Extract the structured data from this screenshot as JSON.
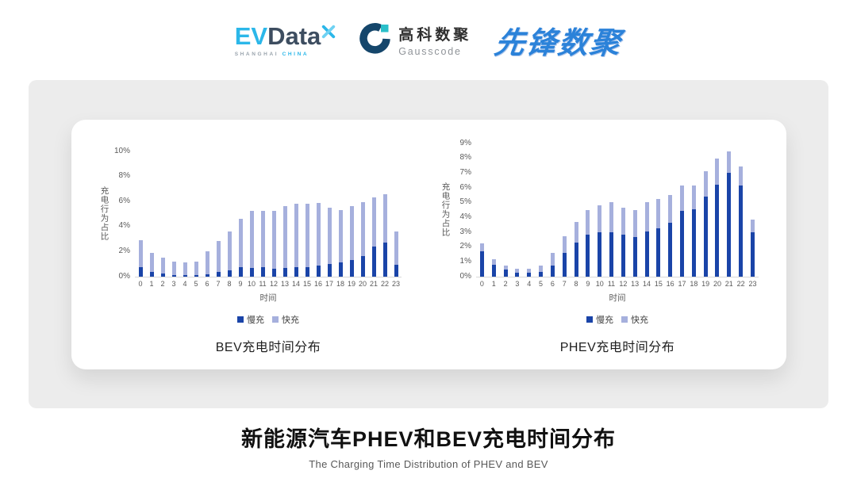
{
  "header": {
    "evdata": {
      "ev": "EV",
      "data": "Data",
      "sub_left": "SHANGHAI",
      "sub_right": "CHINA"
    },
    "gausscode": {
      "cn": "高科数聚",
      "en": "Gausscode"
    },
    "pioneer": {
      "text": "先锋数聚"
    }
  },
  "footer": {
    "title": "新能源汽车PHEV和BEV充电时间分布",
    "subtitle": "The Charging Time Distribution of PHEV and BEV"
  },
  "colors": {
    "accent_cyan": "#2BB7E9",
    "logo_slate": "#3D4D60",
    "gauss_navy": "#15466B",
    "gauss_teal": "#2ABFC9",
    "pioneer_blue": "#2B82D9",
    "slow_charge": "#1A44A8",
    "fast_charge": "#A6B0DD",
    "axis_text": "#595959",
    "panel_bg": "#ECECEC"
  },
  "chart_data": [
    {
      "type": "bar",
      "stacked": true,
      "title": "BEV充电时间分布",
      "xlabel": "时间",
      "ylabel": "充电行为占比",
      "grid": false,
      "legend_position": "bottom",
      "ylim": [
        0,
        10
      ],
      "ytick_labels": [
        "0%",
        "2%",
        "4%",
        "6%",
        "8%",
        "10%"
      ],
      "categories": [
        "0",
        "1",
        "2",
        "3",
        "4",
        "5",
        "6",
        "7",
        "8",
        "9",
        "10",
        "11",
        "12",
        "13",
        "14",
        "15",
        "16",
        "17",
        "18",
        "19",
        "20",
        "21",
        "22",
        "23"
      ],
      "series": [
        {
          "name": "慢充",
          "color": "#1A44A8",
          "values": [
            0.75,
            0.35,
            0.2,
            0.1,
            0.1,
            0.1,
            0.15,
            0.35,
            0.5,
            0.7,
            0.65,
            0.7,
            0.6,
            0.65,
            0.7,
            0.7,
            0.85,
            1.0,
            1.1,
            1.3,
            1.6,
            2.35,
            2.7,
            0.95
          ]
        },
        {
          "name": "快充",
          "color": "#A6B0DD",
          "values": [
            2.15,
            1.55,
            1.3,
            1.1,
            1.0,
            1.1,
            1.85,
            2.45,
            3.1,
            3.9,
            4.55,
            4.55,
            4.6,
            4.95,
            5.1,
            5.1,
            5.0,
            4.45,
            4.2,
            4.3,
            4.3,
            3.95,
            3.85,
            2.6
          ]
        }
      ]
    },
    {
      "type": "bar",
      "stacked": true,
      "title": "PHEV充电时间分布",
      "xlabel": "时间",
      "ylabel": "充电行为占比",
      "grid": false,
      "legend_position": "bottom",
      "ylim": [
        0,
        9
      ],
      "ytick_labels": [
        "0%",
        "1%",
        "2%",
        "3%",
        "4%",
        "5%",
        "6%",
        "7%",
        "8%",
        "9%"
      ],
      "categories": [
        "0",
        "1",
        "2",
        "3",
        "4",
        "5",
        "6",
        "7",
        "8",
        "9",
        "10",
        "11",
        "12",
        "13",
        "14",
        "15",
        "16",
        "17",
        "18",
        "19",
        "20",
        "21",
        "22",
        "23"
      ],
      "series": [
        {
          "name": "慢充",
          "color": "#1A44A8",
          "values": [
            1.7,
            0.8,
            0.45,
            0.25,
            0.25,
            0.3,
            0.7,
            1.6,
            2.3,
            2.8,
            3.0,
            3.0,
            2.8,
            2.65,
            3.05,
            3.25,
            3.6,
            4.4,
            4.55,
            5.4,
            6.2,
            7.0,
            6.15,
            3.0
          ]
        },
        {
          "name": "快充",
          "color": "#A6B0DD",
          "values": [
            0.5,
            0.35,
            0.3,
            0.25,
            0.25,
            0.4,
            0.9,
            1.1,
            1.35,
            1.7,
            1.8,
            2.0,
            1.85,
            1.85,
            1.95,
            2.0,
            1.9,
            1.75,
            1.6,
            1.7,
            1.75,
            1.45,
            1.25,
            0.85
          ]
        }
      ]
    }
  ]
}
